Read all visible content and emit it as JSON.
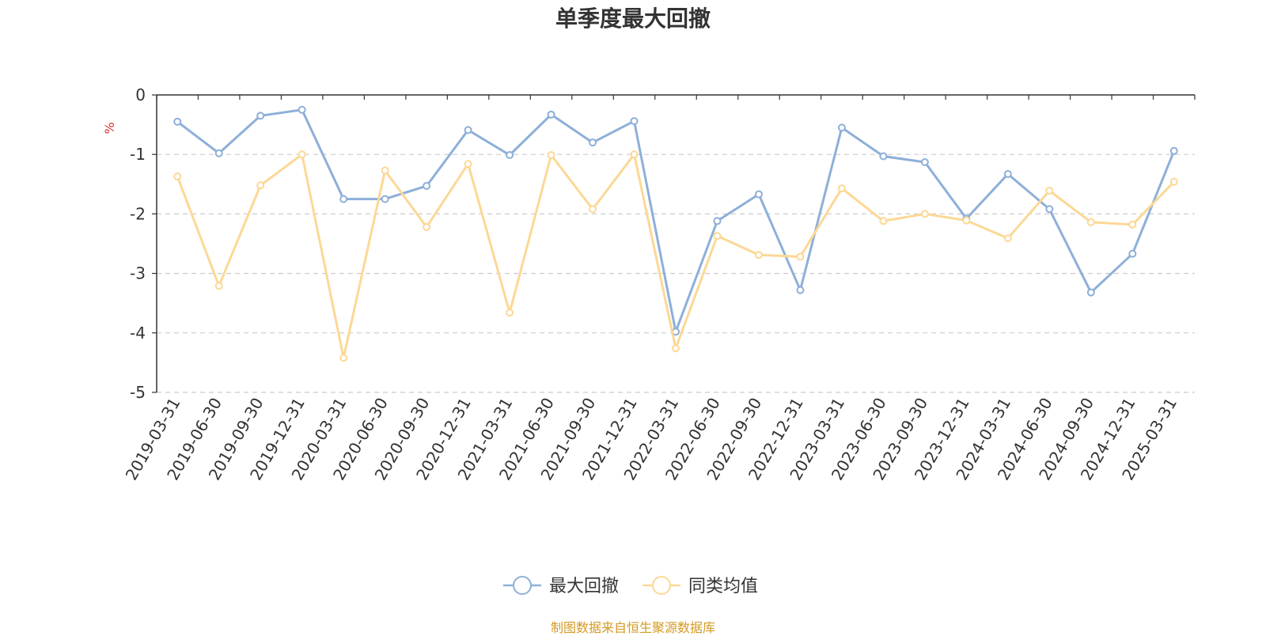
{
  "chart_data": {
    "type": "line",
    "title": "单季度最大回撤",
    "ylabel": "%",
    "ylim": [
      -5,
      0
    ],
    "yticks": [
      0,
      -1,
      -2,
      -3,
      -4,
      -5
    ],
    "grid": true,
    "legend_position": "bottom",
    "source": "制图数据来自恒生聚源数据库",
    "categories": [
      "2019-03-31",
      "2019-06-30",
      "2019-09-30",
      "2019-12-31",
      "2020-03-31",
      "2020-06-30",
      "2020-09-30",
      "2020-12-31",
      "2021-03-31",
      "2021-06-30",
      "2021-09-30",
      "2021-12-31",
      "2022-03-31",
      "2022-06-30",
      "2022-09-30",
      "2022-12-31",
      "2023-03-31",
      "2023-06-30",
      "2023-09-30",
      "2023-12-31",
      "2024-03-31",
      "2024-06-30",
      "2024-09-30",
      "2024-12-31",
      "2025-03-31"
    ],
    "series": [
      {
        "name": "最大回撤",
        "color": "#8eafd9",
        "values": [
          -0.45,
          -0.98,
          -0.35,
          -0.25,
          -1.75,
          -1.75,
          -1.53,
          -0.59,
          -1.01,
          -0.33,
          -0.8,
          -0.44,
          -3.98,
          -2.12,
          -1.67,
          -3.28,
          -0.55,
          -1.03,
          -1.13,
          -2.08,
          -1.33,
          -1.92,
          -3.32,
          -2.67,
          -0.94
        ]
      },
      {
        "name": "同类均值",
        "color": "#fcd895",
        "values": [
          -1.37,
          -3.21,
          -1.52,
          -1.0,
          -4.42,
          -1.27,
          -2.22,
          -1.16,
          -3.66,
          -1.01,
          -1.92,
          -1.0,
          -4.26,
          -2.37,
          -2.69,
          -2.72,
          -1.57,
          -2.12,
          -2.0,
          -2.11,
          -2.41,
          -1.61,
          -2.14,
          -2.18,
          -1.46
        ]
      }
    ]
  }
}
